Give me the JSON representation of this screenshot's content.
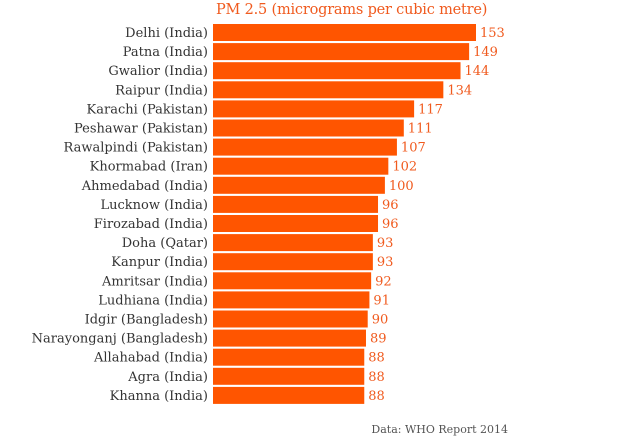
{
  "chart_data": {
    "type": "bar",
    "orientation": "horizontal",
    "title": "PM 2.5 (micrograms per cubic metre)",
    "source": "Data: WHO Report 2014",
    "categories": [
      "Delhi (India)",
      "Patna (India)",
      "Gwalior (India)",
      "Raipur (India)",
      "Karachi (Pakistan)",
      "Peshawar (Pakistan)",
      "Rawalpindi (Pakistan)",
      "Khormabad (Iran)",
      "Ahmedabad (India)",
      "Lucknow (India)",
      "Firozabad (India)",
      "Doha (Qatar)",
      "Kanpur (India)",
      "Amritsar (India)",
      "Ludhiana (India)",
      "Idgir (Bangladesh)",
      "Narayonganj (Bangladesh)",
      "Allahabad (India)",
      "Agra (India)",
      "Khanna (India)"
    ],
    "values": [
      153,
      149,
      144,
      134,
      117,
      111,
      107,
      102,
      100,
      96,
      96,
      93,
      93,
      92,
      91,
      90,
      89,
      88,
      88,
      88
    ],
    "xlim": [
      0,
      153
    ],
    "bar_color": "#ff5500",
    "value_label_color": "#f05a1e",
    "grid": false,
    "legend": "none"
  }
}
